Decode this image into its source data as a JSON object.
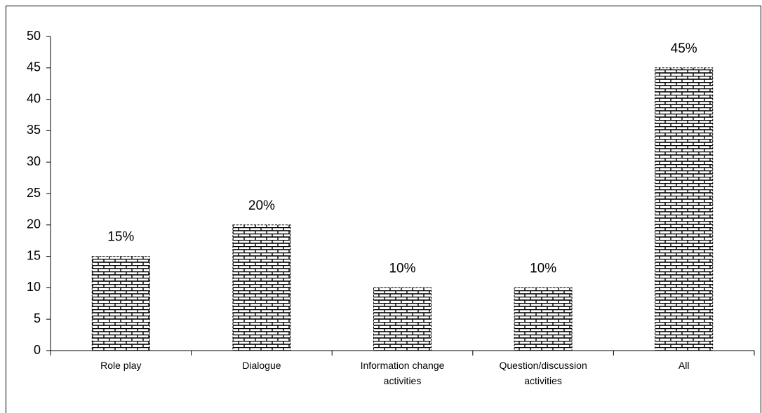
{
  "chart_data": {
    "type": "bar",
    "categories": [
      "Role play",
      "Dialogue",
      "Information change activities",
      "Question/discussion activities",
      "All"
    ],
    "values": [
      15,
      20,
      10,
      10,
      45
    ],
    "value_labels": [
      "15%",
      "20%",
      "10%",
      "10%",
      "45%"
    ],
    "color": "#000000",
    "ylim": [
      0,
      50
    ],
    "yticks": [
      0,
      5,
      10,
      15,
      20,
      25,
      30,
      35,
      40,
      45,
      50
    ],
    "grid": false
  }
}
